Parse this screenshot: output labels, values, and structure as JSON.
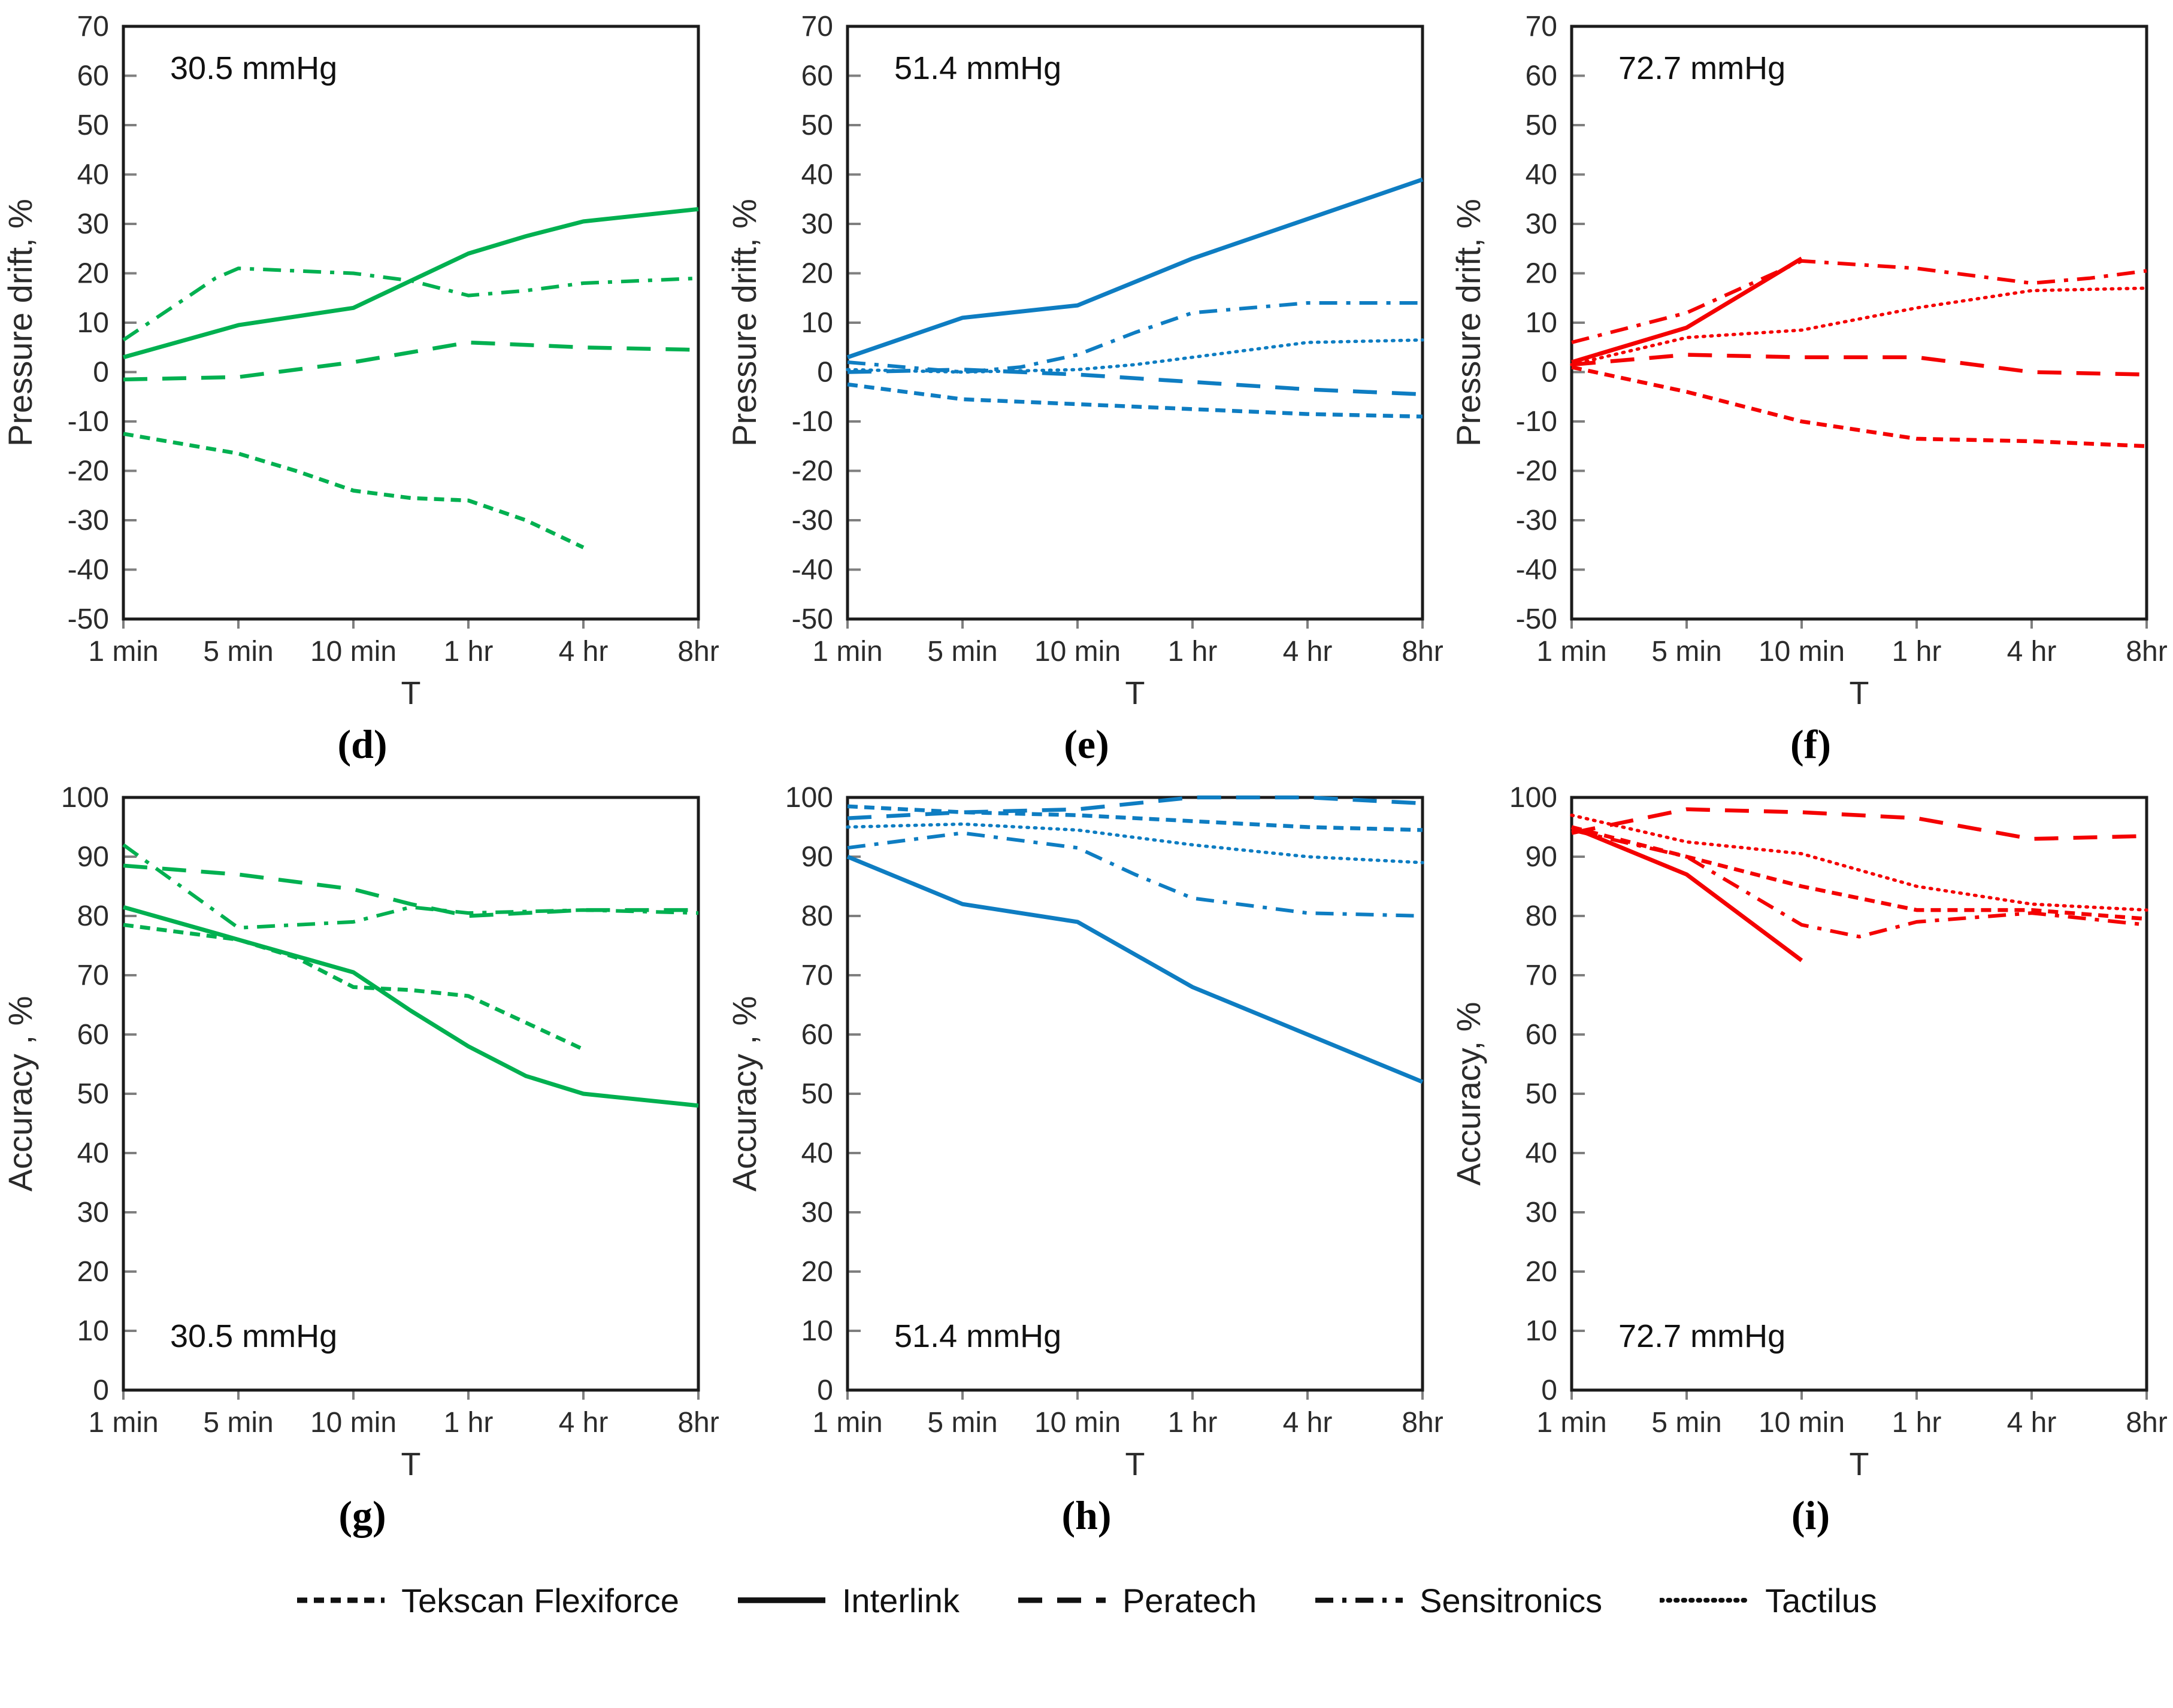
{
  "figure": {
    "legend": [
      {
        "name": "Tekscan Flexiforce",
        "style": "short-dash"
      },
      {
        "name": "Interlink",
        "style": "solid"
      },
      {
        "name": "Peratech",
        "style": "long-dash"
      },
      {
        "name": "Sensitronics",
        "style": "dash-dot"
      },
      {
        "name": "Tactilus",
        "style": "dotted"
      }
    ],
    "legend_swatch_color": "#111111"
  },
  "chart_data": [
    {
      "id": "d",
      "label": "(d)",
      "type": "line",
      "color": "#00B050",
      "annotation": "30.5 mmHg",
      "annotation_pos": "top-left",
      "xlabel": "T",
      "ylabel": "Pressure drift, %",
      "ylim": [
        -50,
        70
      ],
      "ytick_step": 10,
      "grid": false,
      "legend_position": "none",
      "x_ticks": [
        "1 min",
        "5 min",
        "10 min",
        "1 hr",
        "4 hr",
        "8hr"
      ],
      "x_note": "x values are tick-index units: 0=1min, 1=5min, 2=10min, 3=1hr, 4=4hr, 5=8hr",
      "series": [
        {
          "name": "Tekscan Flexiforce",
          "style": "short-dash",
          "points": [
            [
              0,
              -12.5
            ],
            [
              0.5,
              -14.5
            ],
            [
              1,
              -16.5
            ],
            [
              1.5,
              -20
            ],
            [
              2,
              -24
            ],
            [
              2.5,
              -25.5
            ],
            [
              3,
              -26
            ],
            [
              3.5,
              -30
            ],
            [
              4,
              -35.5
            ]
          ]
        },
        {
          "name": "Interlink",
          "style": "solid",
          "points": [
            [
              0,
              3
            ],
            [
              1,
              9.5
            ],
            [
              2,
              13
            ],
            [
              2.5,
              18.5
            ],
            [
              3,
              24
            ],
            [
              3.5,
              27.5
            ],
            [
              4,
              30.5
            ],
            [
              5,
              33
            ]
          ]
        },
        {
          "name": "Peratech",
          "style": "long-dash",
          "points": [
            [
              0,
              -1.5
            ],
            [
              1,
              -1
            ],
            [
              2,
              2
            ],
            [
              2.5,
              4
            ],
            [
              3,
              6
            ],
            [
              3.5,
              5.5
            ],
            [
              4,
              5
            ],
            [
              5,
              4.5
            ]
          ]
        },
        {
          "name": "Sensitronics",
          "style": "dash-dot",
          "points": [
            [
              0,
              6.5
            ],
            [
              0.8,
              19
            ],
            [
              1,
              21
            ],
            [
              1.5,
              20.5
            ],
            [
              2,
              20
            ],
            [
              2.5,
              18.5
            ],
            [
              3,
              15.5
            ],
            [
              3.5,
              16.5
            ],
            [
              4,
              18
            ],
            [
              5,
              19
            ]
          ]
        }
      ]
    },
    {
      "id": "e",
      "label": "(e)",
      "type": "line",
      "color": "#0E7DC2",
      "annotation": "51.4 mmHg",
      "annotation_pos": "top-left",
      "xlabel": "T",
      "ylabel": "Pressure drift, %",
      "ylim": [
        -50,
        70
      ],
      "ytick_step": 10,
      "grid": false,
      "legend_position": "none",
      "x_ticks": [
        "1 min",
        "5 min",
        "10 min",
        "1 hr",
        "4 hr",
        "8hr"
      ],
      "series": [
        {
          "name": "Tekscan Flexiforce",
          "style": "short-dash",
          "points": [
            [
              0,
              -2.5
            ],
            [
              1,
              -5.5
            ],
            [
              2,
              -6.5
            ],
            [
              3,
              -7.5
            ],
            [
              4,
              -8.5
            ],
            [
              5,
              -9
            ]
          ]
        },
        {
          "name": "Interlink",
          "style": "solid",
          "points": [
            [
              0,
              3
            ],
            [
              1,
              11
            ],
            [
              2,
              13.5
            ],
            [
              3,
              23
            ],
            [
              4,
              31
            ],
            [
              5,
              39
            ]
          ]
        },
        {
          "name": "Peratech",
          "style": "long-dash",
          "points": [
            [
              0,
              0
            ],
            [
              1,
              0.5
            ],
            [
              2,
              -0.5
            ],
            [
              3,
              -2
            ],
            [
              4,
              -3.5
            ],
            [
              5,
              -4.5
            ]
          ]
        },
        {
          "name": "Sensitronics",
          "style": "dash-dot",
          "points": [
            [
              0,
              2
            ],
            [
              1,
              0
            ],
            [
              1.5,
              1
            ],
            [
              2,
              3.5
            ],
            [
              2.5,
              8
            ],
            [
              3,
              12
            ],
            [
              4,
              14
            ],
            [
              5,
              14
            ]
          ]
        },
        {
          "name": "Tactilus",
          "style": "dotted",
          "points": [
            [
              0,
              0.5
            ],
            [
              1,
              0
            ],
            [
              2,
              0.5
            ],
            [
              2.5,
              1.5
            ],
            [
              3,
              3
            ],
            [
              4,
              6
            ],
            [
              5,
              6.5
            ]
          ]
        }
      ]
    },
    {
      "id": "f",
      "label": "(f)",
      "type": "line",
      "color": "#F40000",
      "annotation": "72.7 mmHg",
      "annotation_pos": "top-left",
      "xlabel": "T",
      "ylabel": "Pressure drift, %",
      "ylim": [
        -50,
        70
      ],
      "ytick_step": 10,
      "grid": false,
      "legend_position": "none",
      "x_ticks": [
        "1 min",
        "5 min",
        "10 min",
        "1 hr",
        "4 hr",
        "8hr"
      ],
      "series": [
        {
          "name": "Tekscan Flexiforce",
          "style": "short-dash",
          "points": [
            [
              0,
              1
            ],
            [
              1,
              -4
            ],
            [
              2,
              -10
            ],
            [
              3,
              -13.5
            ],
            [
              4,
              -14
            ],
            [
              5,
              -15
            ]
          ]
        },
        {
          "name": "Interlink",
          "style": "solid",
          "points": [
            [
              0,
              2
            ],
            [
              1,
              9
            ],
            [
              2,
              23
            ]
          ]
        },
        {
          "name": "Peratech",
          "style": "long-dash",
          "points": [
            [
              0,
              1.5
            ],
            [
              1,
              3.5
            ],
            [
              2,
              3
            ],
            [
              3,
              3
            ],
            [
              4,
              0
            ],
            [
              5,
              -0.5
            ]
          ]
        },
        {
          "name": "Sensitronics",
          "style": "dash-dot",
          "points": [
            [
              0,
              6
            ],
            [
              1,
              12
            ],
            [
              2,
              22.5
            ],
            [
              3,
              21
            ],
            [
              4,
              18
            ],
            [
              4.5,
              19
            ],
            [
              5,
              20.5
            ]
          ]
        },
        {
          "name": "Tactilus",
          "style": "dotted",
          "points": [
            [
              0,
              1.5
            ],
            [
              1,
              7
            ],
            [
              2,
              8.5
            ],
            [
              3,
              13
            ],
            [
              4,
              16.5
            ],
            [
              5,
              17
            ]
          ]
        }
      ]
    },
    {
      "id": "g",
      "label": "(g)",
      "type": "line",
      "color": "#00B050",
      "annotation": "30.5 mmHg",
      "annotation_pos": "bottom-left",
      "xlabel": "T",
      "ylabel": "Accuracy , %",
      "ylim": [
        0,
        100
      ],
      "ytick_step": 10,
      "grid": false,
      "legend_position": "none",
      "x_ticks": [
        "1 min",
        "5 min",
        "10 min",
        "1 hr",
        "4 hr",
        "8hr"
      ],
      "series": [
        {
          "name": "Tekscan Flexiforce",
          "style": "short-dash",
          "points": [
            [
              0,
              78.5
            ],
            [
              1,
              76
            ],
            [
              1.5,
              73
            ],
            [
              2,
              68
            ],
            [
              2.5,
              67.5
            ],
            [
              3,
              66.5
            ],
            [
              3.5,
              62
            ],
            [
              4,
              57.5
            ]
          ]
        },
        {
          "name": "Interlink",
          "style": "solid",
          "points": [
            [
              0,
              81.5
            ],
            [
              1,
              76
            ],
            [
              2,
              70.5
            ],
            [
              2.5,
              64
            ],
            [
              3,
              58
            ],
            [
              3.5,
              53
            ],
            [
              4,
              50
            ],
            [
              5,
              48
            ]
          ]
        },
        {
          "name": "Peratech",
          "style": "long-dash",
          "points": [
            [
              0,
              88.5
            ],
            [
              1,
              87
            ],
            [
              2,
              84.5
            ],
            [
              2.5,
              82
            ],
            [
              3,
              80
            ],
            [
              4,
              81
            ],
            [
              5,
              81
            ]
          ]
        },
        {
          "name": "Sensitronics",
          "style": "dash-dot",
          "points": [
            [
              0,
              92
            ],
            [
              1,
              78
            ],
            [
              2,
              79
            ],
            [
              2.5,
              81.5
            ],
            [
              3,
              80.5
            ],
            [
              4,
              81
            ],
            [
              5,
              80.5
            ]
          ]
        }
      ]
    },
    {
      "id": "h",
      "label": "(h)",
      "type": "line",
      "color": "#0E7DC2",
      "annotation": "51.4 mmHg",
      "annotation_pos": "bottom-left",
      "xlabel": "T",
      "ylabel": "Accuracy , %",
      "ylim": [
        0,
        100
      ],
      "ytick_step": 10,
      "grid": false,
      "legend_position": "none",
      "x_ticks": [
        "1 min",
        "5 min",
        "10 min",
        "1 hr",
        "4 hr",
        "8hr"
      ],
      "series": [
        {
          "name": "Tekscan Flexiforce",
          "style": "short-dash",
          "points": [
            [
              0,
              98.5
            ],
            [
              1,
              97.5
            ],
            [
              2,
              97
            ],
            [
              3,
              96
            ],
            [
              4,
              95
            ],
            [
              5,
              94.5
            ]
          ]
        },
        {
          "name": "Interlink",
          "style": "solid",
          "points": [
            [
              0,
              90
            ],
            [
              1,
              82
            ],
            [
              2,
              79
            ],
            [
              3,
              68
            ],
            [
              4,
              60
            ],
            [
              5,
              52
            ]
          ]
        },
        {
          "name": "Peratech",
          "style": "long-dash",
          "points": [
            [
              0,
              96.5
            ],
            [
              1,
              97.5
            ],
            [
              2,
              98
            ],
            [
              3,
              100
            ],
            [
              4,
              100
            ],
            [
              5,
              99
            ]
          ]
        },
        {
          "name": "Sensitronics",
          "style": "dash-dot",
          "points": [
            [
              0,
              91.5
            ],
            [
              1,
              94
            ],
            [
              2,
              91.5
            ],
            [
              2.5,
              87
            ],
            [
              3,
              83
            ],
            [
              4,
              80.5
            ],
            [
              5,
              80
            ]
          ]
        },
        {
          "name": "Tactilus",
          "style": "dotted",
          "points": [
            [
              0,
              95
            ],
            [
              1,
              95.5
            ],
            [
              2,
              94.5
            ],
            [
              3,
              92
            ],
            [
              4,
              90
            ],
            [
              5,
              89
            ]
          ]
        }
      ]
    },
    {
      "id": "i",
      "label": "(i)",
      "type": "line",
      "color": "#F40000",
      "annotation": "72.7 mmHg",
      "annotation_pos": "bottom-left",
      "xlabel": "T",
      "ylabel": "Accuracy, %",
      "ylim": [
        0,
        100
      ],
      "ytick_step": 10,
      "grid": false,
      "legend_position": "none",
      "x_ticks": [
        "1 min",
        "5 min",
        "10 min",
        "1 hr",
        "4 hr",
        "8hr"
      ],
      "series": [
        {
          "name": "Tekscan Flexiforce",
          "style": "short-dash",
          "points": [
            [
              0,
              95
            ],
            [
              1,
              90
            ],
            [
              2,
              85
            ],
            [
              3,
              81
            ],
            [
              4,
              81
            ],
            [
              5,
              79.5
            ]
          ]
        },
        {
          "name": "Interlink",
          "style": "solid",
          "points": [
            [
              0,
              95
            ],
            [
              1,
              87
            ],
            [
              2,
              72.5
            ]
          ]
        },
        {
          "name": "Peratech",
          "style": "long-dash",
          "points": [
            [
              0,
              94
            ],
            [
              1,
              98
            ],
            [
              2,
              97.5
            ],
            [
              3,
              96.5
            ],
            [
              4,
              93
            ],
            [
              5,
              93.5
            ]
          ]
        },
        {
          "name": "Sensitronics",
          "style": "dash-dot",
          "points": [
            [
              0,
              94.5
            ],
            [
              1,
              90
            ],
            [
              2,
              78.5
            ],
            [
              2.5,
              76.5
            ],
            [
              3,
              79
            ],
            [
              4,
              80.5
            ],
            [
              5,
              78.5
            ]
          ]
        },
        {
          "name": "Tactilus",
          "style": "dotted",
          "points": [
            [
              0,
              97
            ],
            [
              1,
              92.5
            ],
            [
              2,
              90.5
            ],
            [
              3,
              85
            ],
            [
              4,
              82
            ],
            [
              5,
              81
            ]
          ]
        }
      ]
    }
  ]
}
